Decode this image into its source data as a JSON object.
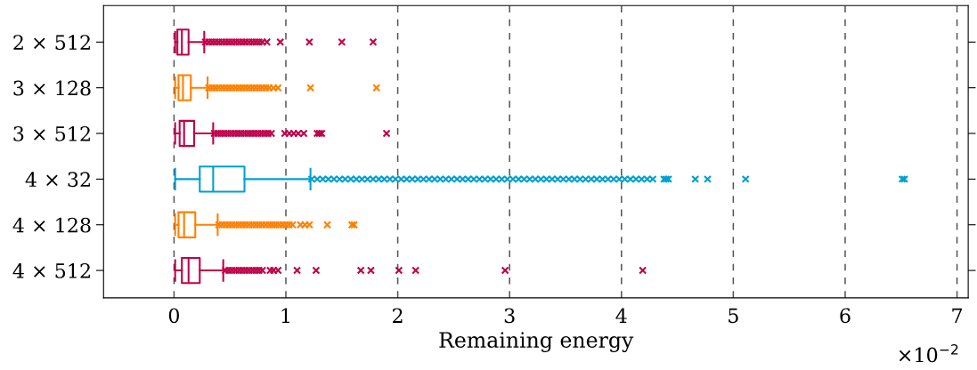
{
  "chart_data": {
    "type": "box",
    "orientation": "horizontal",
    "xlabel": "Remaining energy",
    "categories": [
      "2 × 512",
      "3 × 128",
      "3 × 512",
      "4 × 32",
      "4 × 128",
      "4 × 512"
    ],
    "colors": [
      "#c0004a",
      "#ff8000",
      "#c0004a",
      "#00a0d0",
      "#ff8000",
      "#c0004a"
    ],
    "boxes": [
      {
        "low": 0.01,
        "q1": 0.03,
        "median": 0.07,
        "q3": 0.13,
        "high": 0.27,
        "outliers": [
          0.28,
          0.31,
          0.34,
          0.37,
          0.4,
          0.43,
          0.46,
          0.49,
          0.52,
          0.55,
          0.58,
          0.61,
          0.64,
          0.67,
          0.7,
          0.73,
          0.76,
          0.79,
          0.83,
          0.95,
          1.21,
          1.5,
          1.78
        ]
      },
      {
        "low": 0.01,
        "q1": 0.04,
        "median": 0.08,
        "q3": 0.15,
        "high": 0.3,
        "outliers": [
          0.31,
          0.34,
          0.37,
          0.4,
          0.43,
          0.46,
          0.49,
          0.52,
          0.55,
          0.58,
          0.61,
          0.64,
          0.67,
          0.7,
          0.73,
          0.76,
          0.79,
          0.82,
          0.85,
          0.89,
          0.93,
          1.22,
          1.81
        ]
      },
      {
        "low": 0.01,
        "q1": 0.05,
        "median": 0.09,
        "q3": 0.18,
        "high": 0.35,
        "outliers": [
          0.36,
          0.39,
          0.42,
          0.45,
          0.48,
          0.51,
          0.54,
          0.57,
          0.6,
          0.63,
          0.66,
          0.69,
          0.72,
          0.75,
          0.78,
          0.81,
          0.84,
          0.87,
          0.99,
          1.03,
          1.07,
          1.11,
          1.16,
          1.28,
          1.3,
          1.32,
          1.9
        ]
      },
      {
        "low": 0.01,
        "q1": 0.23,
        "median": 0.35,
        "q3": 0.63,
        "high": 1.22,
        "outliers": [
          1.23,
          1.28,
          1.33,
          1.38,
          1.43,
          1.48,
          1.53,
          1.58,
          1.63,
          1.68,
          1.73,
          1.78,
          1.83,
          1.88,
          1.93,
          1.98,
          2.03,
          2.08,
          2.13,
          2.18,
          2.23,
          2.28,
          2.33,
          2.38,
          2.43,
          2.48,
          2.53,
          2.58,
          2.63,
          2.68,
          2.73,
          2.78,
          2.83,
          2.88,
          2.93,
          2.98,
          3.03,
          3.08,
          3.13,
          3.18,
          3.23,
          3.28,
          3.33,
          3.38,
          3.43,
          3.48,
          3.53,
          3.58,
          3.63,
          3.68,
          3.73,
          3.78,
          3.83,
          3.88,
          3.93,
          3.98,
          4.03,
          4.08,
          4.13,
          4.18,
          4.23,
          4.28,
          4.38,
          4.4,
          4.42,
          4.66,
          4.77,
          5.11,
          6.51,
          6.53
        ]
      },
      {
        "low": 0.01,
        "q1": 0.04,
        "median": 0.09,
        "q3": 0.19,
        "high": 0.39,
        "outliers": [
          0.4,
          0.43,
          0.46,
          0.49,
          0.52,
          0.55,
          0.58,
          0.61,
          0.64,
          0.67,
          0.7,
          0.73,
          0.76,
          0.79,
          0.82,
          0.85,
          0.88,
          0.91,
          0.94,
          0.97,
          1.0,
          1.03,
          1.06,
          1.13,
          1.17,
          1.21,
          1.37,
          1.59,
          1.61
        ]
      },
      {
        "low": 0.01,
        "q1": 0.07,
        "median": 0.13,
        "q3": 0.23,
        "high": 0.44,
        "outliers": [
          0.46,
          0.49,
          0.52,
          0.55,
          0.58,
          0.61,
          0.64,
          0.67,
          0.7,
          0.73,
          0.76,
          0.79,
          0.86,
          0.89,
          0.93,
          1.1,
          1.27,
          1.67,
          1.76,
          2.01,
          2.16,
          2.96,
          4.19
        ]
      }
    ],
    "xlim": [
      -0.63,
      7.1
    ],
    "xticks": [
      0,
      1,
      2,
      3,
      4,
      5,
      6,
      7
    ],
    "grid": "x",
    "line_style": "dashed",
    "marker": "cross",
    "annotations": [
      "×10$^{−2}$"
    ]
  }
}
